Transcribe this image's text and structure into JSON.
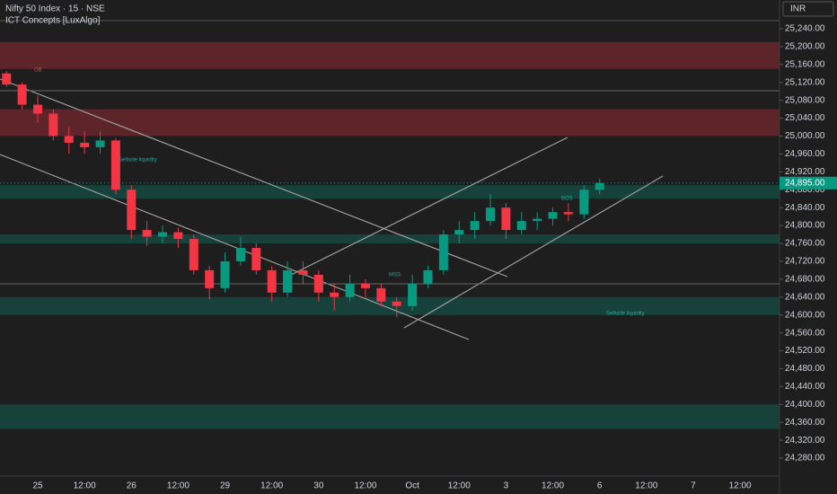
{
  "chart_data": {
    "type": "candlestick",
    "title": "Nifty 50 Index · 15 · NSE",
    "subtitle": "ICT Concepts [LuxAlgo]",
    "currency": "INR",
    "categories": [
      null,
      null,
      "25",
      null,
      null,
      "12:00",
      null,
      null,
      "26",
      null,
      null,
      "12:00",
      null,
      null,
      "29",
      null,
      null,
      "12:00",
      null,
      null,
      "30",
      null,
      null,
      "12:00",
      null,
      null,
      "Oct",
      null,
      null,
      "12:00",
      null,
      null,
      "3",
      null,
      null,
      "12:00",
      null,
      null,
      "6",
      null,
      null,
      "12:00",
      null,
      null,
      "7",
      null,
      null,
      "12:00",
      null
    ],
    "open": [
      25140,
      25115,
      25070,
      25050,
      25000,
      24985,
      24975,
      24990,
      24880,
      24790,
      24775,
      24785,
      24770,
      24700,
      24660,
      24720,
      24750,
      24700,
      24650,
      24700,
      24690,
      24650,
      24640,
      24670,
      24660,
      24630,
      24620,
      24670,
      24700,
      24780,
      24790,
      24810,
      24840,
      24790,
      24810,
      24815,
      24830,
      24825,
      24880,
      null,
      null,
      null,
      null,
      null,
      null,
      null,
      null,
      null,
      null
    ],
    "high": [
      25145,
      25120,
      25090,
      25060,
      25020,
      25010,
      25010,
      24995,
      24890,
      24810,
      24800,
      24795,
      24780,
      24710,
      24740,
      24775,
      24760,
      24710,
      24720,
      24720,
      24700,
      24670,
      24690,
      24680,
      24670,
      24640,
      24690,
      24710,
      24790,
      24810,
      24830,
      24870,
      24850,
      24830,
      24830,
      24840,
      24850,
      24890,
      24905,
      null,
      null,
      null,
      null,
      null,
      null,
      null,
      null,
      null,
      null
    ],
    "low": [
      25110,
      25060,
      25030,
      24990,
      24960,
      24960,
      24960,
      24870,
      24770,
      24755,
      24760,
      24750,
      24690,
      24635,
      24650,
      24710,
      24690,
      24630,
      24640,
      24670,
      24630,
      24610,
      24630,
      24640,
      24620,
      24595,
      24610,
      24660,
      24690,
      24760,
      24770,
      24800,
      24770,
      24780,
      24790,
      24800,
      24810,
      24815,
      24870,
      null,
      null,
      null,
      null,
      null,
      null,
      null,
      null,
      null,
      null
    ],
    "close": [
      25115,
      25070,
      25050,
      25000,
      24985,
      24975,
      24990,
      24880,
      24790,
      24775,
      24785,
      24770,
      24700,
      24660,
      24720,
      24750,
      24700,
      24650,
      24700,
      24690,
      24650,
      24640,
      24670,
      24660,
      24630,
      24620,
      24670,
      24700,
      24780,
      24790,
      24810,
      24840,
      24790,
      24810,
      24815,
      24830,
      24825,
      24880,
      24895,
      null,
      null,
      null,
      null,
      null,
      null,
      null,
      null,
      null,
      null
    ],
    "up_color": "#089981",
    "down_color": "#f23645",
    "last_price": 24895,
    "last_price_label": "24,895.00",
    "zones": [
      {
        "low": 25150,
        "high": 25210,
        "color": "#f23645"
      },
      {
        "low": 25000,
        "high": 25060,
        "color": "#f23645"
      },
      {
        "low": 24860,
        "high": 24890,
        "color": "#089981"
      },
      {
        "low": 24760,
        "high": 24780,
        "color": "#089981"
      },
      {
        "low": 24600,
        "high": 24640,
        "color": "#089981"
      },
      {
        "low": 24345,
        "high": 24400,
        "color": "#089981"
      }
    ],
    "annotations": [
      "OB",
      "Sellside liquidity",
      "MSS",
      "BOS",
      "Sellside liquidity"
    ],
    "ylim": [
      24240,
      25280
    ],
    "yticks": [
      {
        "value": 25240,
        "label": "25,240.00"
      },
      {
        "value": 25200,
        "label": "25,200.00"
      },
      {
        "value": 25160,
        "label": "25,160.00"
      },
      {
        "value": 25120,
        "label": "25,120.00"
      },
      {
        "value": 25080,
        "label": "25,080.00"
      },
      {
        "value": 25040,
        "label": "25,040.00"
      },
      {
        "value": 25000,
        "label": "25,000.00"
      },
      {
        "value": 24960,
        "label": "24,960.00"
      },
      {
        "value": 24920,
        "label": "24,920.00"
      },
      {
        "value": 24880,
        "label": "24,880.00"
      },
      {
        "value": 24840,
        "label": "24,840.00"
      },
      {
        "value": 24800,
        "label": "24,800.00"
      },
      {
        "value": 24760,
        "label": "24,760.00"
      },
      {
        "value": 24720,
        "label": "24,720.00"
      },
      {
        "value": 24680,
        "label": "24,680.00"
      },
      {
        "value": 24640,
        "label": "24,640.00"
      },
      {
        "value": 24600,
        "label": "24,600.00"
      },
      {
        "value": 24560,
        "label": "24,560.00"
      },
      {
        "value": 24520,
        "label": "24,520.00"
      },
      {
        "value": 24480,
        "label": "24,480.00"
      },
      {
        "value": 24440,
        "label": "24,440.00"
      },
      {
        "value": 24400,
        "label": "24,400.00"
      },
      {
        "value": 24360,
        "label": "24,360.00"
      },
      {
        "value": 24320,
        "label": "24,320.00"
      },
      {
        "value": 24280,
        "label": "24,280.00"
      }
    ]
  }
}
